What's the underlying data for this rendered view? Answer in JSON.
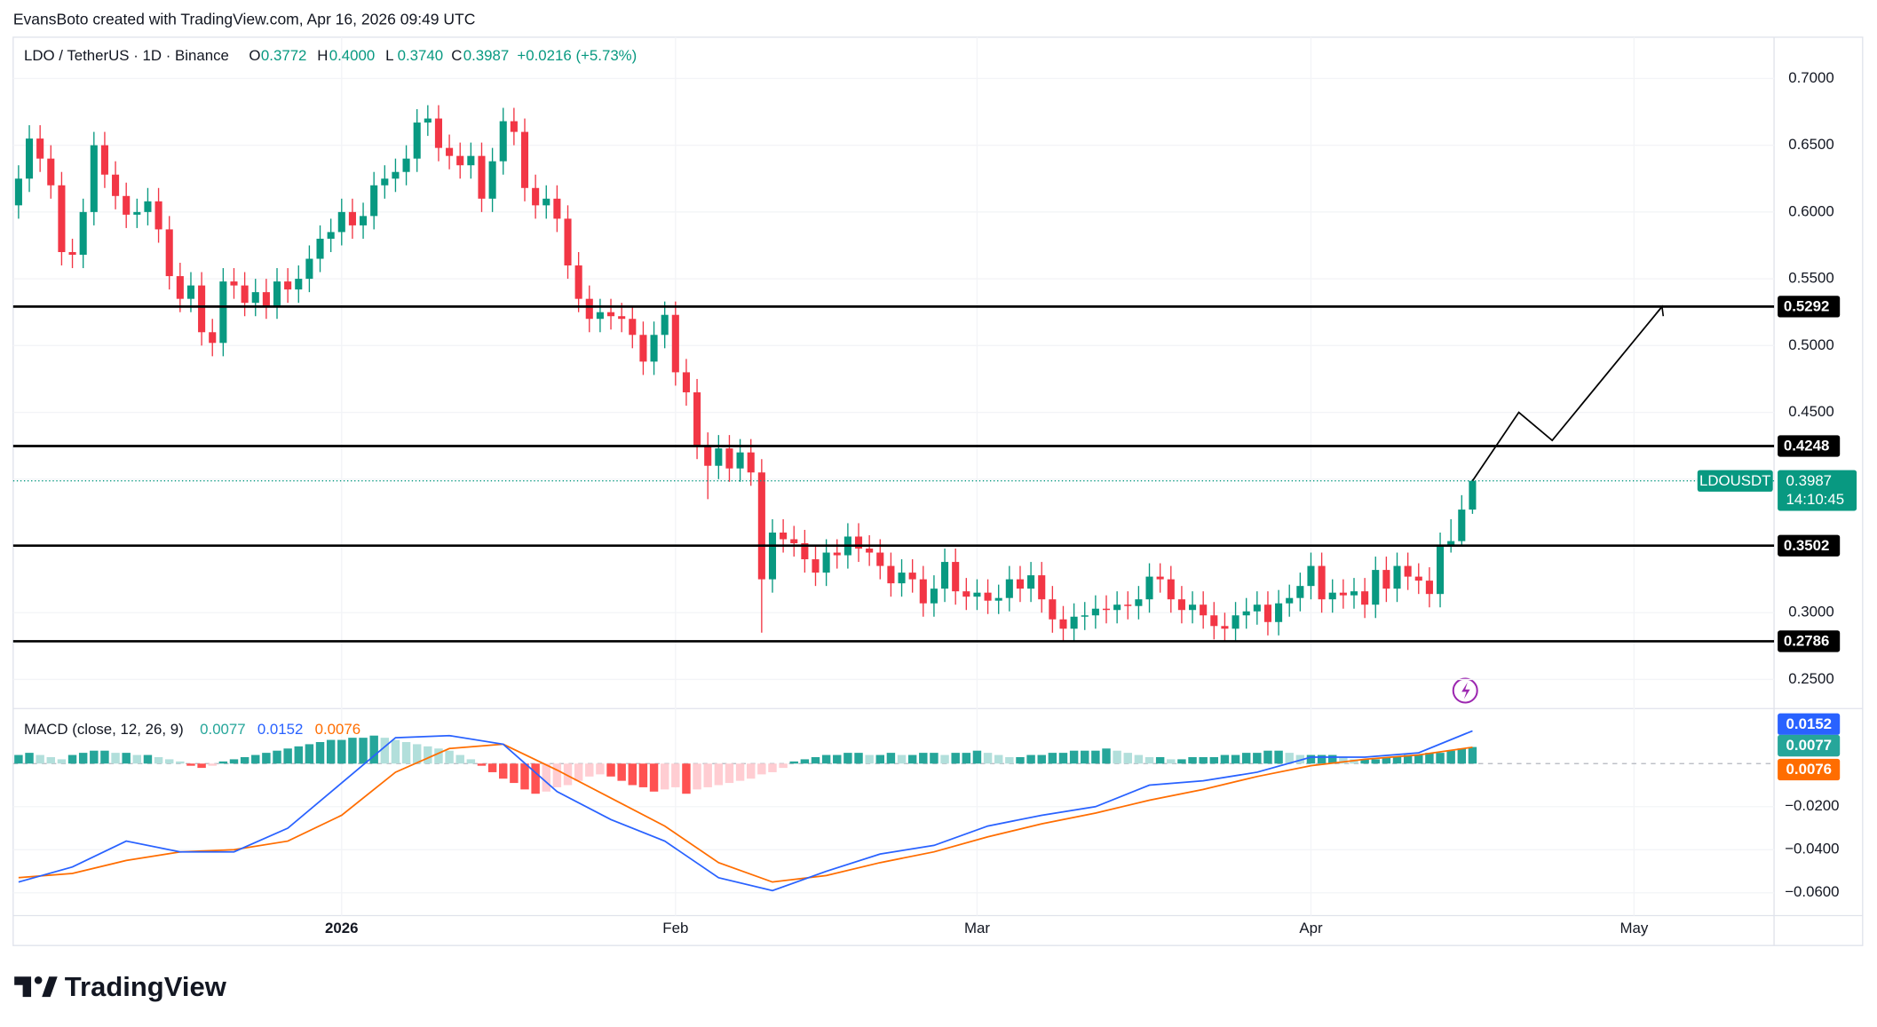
{
  "attribution": "EvansBoto created with TradingView.com, Apr 16, 2026 09:49 UTC",
  "logo": "TradingView",
  "chart_data": [
    {
      "type": "candlestick",
      "title": "LDO / TetherUS · 1D · Binance",
      "ohlc": [
        {
          "key": "O",
          "value": "0.3772"
        },
        {
          "key": "H",
          "value": "0.4000"
        },
        {
          "key": "L",
          "value": "0.3740"
        },
        {
          "key": "C",
          "value": "0.3987"
        }
      ],
      "change": "+0.0216 (+5.73%)",
      "up_color": "#089981",
      "down_color": "#f23645",
      "open": [
        0.605,
        0.625,
        0.655,
        0.64,
        0.62,
        0.57,
        0.568,
        0.6,
        0.65,
        0.628,
        0.612,
        0.598,
        0.6,
        0.608,
        0.587,
        0.552,
        0.535,
        0.545,
        0.51,
        0.502,
        0.548,
        0.545,
        0.532,
        0.54,
        0.53,
        0.548,
        0.542,
        0.55,
        0.565,
        0.58,
        0.585,
        0.6,
        0.59,
        0.597,
        0.62,
        0.625,
        0.63,
        0.64,
        0.667,
        0.67,
        0.648,
        0.642,
        0.635,
        0.642,
        0.61,
        0.638,
        0.668,
        0.66,
        0.618,
        0.605,
        0.61,
        0.595,
        0.56,
        0.535,
        0.52,
        0.525,
        0.522,
        0.52,
        0.508,
        0.488,
        0.508,
        0.523,
        0.48,
        0.465,
        0.425,
        0.41,
        0.423,
        0.408,
        0.42,
        0.405,
        0.325,
        0.36,
        0.355,
        0.352,
        0.34,
        0.33,
        0.345,
        0.343,
        0.357,
        0.348,
        0.345,
        0.335,
        0.322,
        0.33,
        0.325,
        0.307,
        0.318,
        0.338,
        0.316,
        0.312,
        0.315,
        0.309,
        0.311,
        0.325,
        0.318,
        0.328,
        0.31,
        0.295,
        0.288,
        0.297,
        0.298,
        0.303,
        0.302,
        0.306,
        0.305,
        0.31,
        0.327,
        0.325,
        0.31,
        0.302,
        0.306,
        0.298,
        0.29,
        0.288,
        0.298,
        0.301,
        0.306,
        0.293,
        0.307,
        0.311,
        0.32,
        0.335,
        0.31,
        0.315,
        0.313,
        0.316,
        0.306,
        0.332,
        0.318,
        0.335,
        0.327,
        0.324,
        0.314,
        0.35,
        0.3536,
        0.3772
      ],
      "high": [
        0.635,
        0.665,
        0.665,
        0.65,
        0.63,
        0.58,
        0.61,
        0.66,
        0.66,
        0.638,
        0.622,
        0.61,
        0.618,
        0.618,
        0.597,
        0.562,
        0.555,
        0.555,
        0.52,
        0.558,
        0.558,
        0.555,
        0.55,
        0.55,
        0.558,
        0.558,
        0.56,
        0.575,
        0.59,
        0.595,
        0.61,
        0.61,
        0.607,
        0.63,
        0.635,
        0.64,
        0.65,
        0.677,
        0.68,
        0.68,
        0.658,
        0.652,
        0.652,
        0.652,
        0.648,
        0.678,
        0.678,
        0.67,
        0.628,
        0.62,
        0.62,
        0.605,
        0.57,
        0.545,
        0.535,
        0.535,
        0.532,
        0.53,
        0.518,
        0.518,
        0.533,
        0.533,
        0.49,
        0.475,
        0.435,
        0.433,
        0.433,
        0.43,
        0.43,
        0.415,
        0.37,
        0.37,
        0.365,
        0.362,
        0.35,
        0.355,
        0.355,
        0.367,
        0.367,
        0.358,
        0.355,
        0.345,
        0.34,
        0.34,
        0.335,
        0.328,
        0.348,
        0.348,
        0.326,
        0.325,
        0.325,
        0.321,
        0.335,
        0.335,
        0.338,
        0.338,
        0.32,
        0.305,
        0.307,
        0.308,
        0.313,
        0.313,
        0.316,
        0.316,
        0.32,
        0.337,
        0.337,
        0.335,
        0.32,
        0.316,
        0.316,
        0.308,
        0.3,
        0.308,
        0.311,
        0.316,
        0.316,
        0.317,
        0.321,
        0.33,
        0.345,
        0.345,
        0.325,
        0.325,
        0.326,
        0.326,
        0.342,
        0.342,
        0.345,
        0.345,
        0.337,
        0.334,
        0.36,
        0.37,
        0.388,
        0.4
      ],
      "low": [
        0.595,
        0.615,
        0.63,
        0.61,
        0.56,
        0.558,
        0.558,
        0.59,
        0.618,
        0.602,
        0.588,
        0.588,
        0.59,
        0.577,
        0.542,
        0.525,
        0.525,
        0.5,
        0.492,
        0.492,
        0.535,
        0.522,
        0.522,
        0.52,
        0.52,
        0.532,
        0.532,
        0.54,
        0.555,
        0.57,
        0.575,
        0.58,
        0.58,
        0.587,
        0.61,
        0.615,
        0.62,
        0.63,
        0.657,
        0.638,
        0.632,
        0.625,
        0.625,
        0.6,
        0.6,
        0.628,
        0.65,
        0.608,
        0.595,
        0.595,
        0.585,
        0.55,
        0.525,
        0.51,
        0.51,
        0.512,
        0.51,
        0.498,
        0.478,
        0.478,
        0.498,
        0.47,
        0.455,
        0.415,
        0.385,
        0.4,
        0.398,
        0.398,
        0.395,
        0.285,
        0.315,
        0.345,
        0.342,
        0.33,
        0.32,
        0.32,
        0.333,
        0.333,
        0.338,
        0.335,
        0.325,
        0.312,
        0.312,
        0.315,
        0.297,
        0.297,
        0.308,
        0.306,
        0.302,
        0.302,
        0.299,
        0.299,
        0.301,
        0.308,
        0.308,
        0.3,
        0.285,
        0.278,
        0.278,
        0.287,
        0.288,
        0.292,
        0.292,
        0.295,
        0.295,
        0.3,
        0.315,
        0.3,
        0.292,
        0.292,
        0.288,
        0.28,
        0.278,
        0.278,
        0.288,
        0.291,
        0.283,
        0.283,
        0.297,
        0.301,
        0.31,
        0.3,
        0.3,
        0.303,
        0.303,
        0.296,
        0.296,
        0.308,
        0.308,
        0.317,
        0.314,
        0.304,
        0.304,
        0.345,
        0.35,
        0.374
      ],
      "close": [
        0.625,
        0.655,
        0.64,
        0.62,
        0.57,
        0.568,
        0.6,
        0.65,
        0.628,
        0.612,
        0.598,
        0.6,
        0.608,
        0.587,
        0.552,
        0.535,
        0.545,
        0.51,
        0.502,
        0.548,
        0.545,
        0.532,
        0.54,
        0.53,
        0.548,
        0.542,
        0.55,
        0.565,
        0.58,
        0.585,
        0.6,
        0.59,
        0.597,
        0.62,
        0.625,
        0.63,
        0.64,
        0.667,
        0.67,
        0.648,
        0.642,
        0.635,
        0.642,
        0.61,
        0.638,
        0.668,
        0.66,
        0.618,
        0.605,
        0.61,
        0.595,
        0.56,
        0.535,
        0.52,
        0.525,
        0.522,
        0.52,
        0.508,
        0.488,
        0.508,
        0.523,
        0.48,
        0.465,
        0.425,
        0.41,
        0.423,
        0.408,
        0.42,
        0.405,
        0.325,
        0.36,
        0.355,
        0.352,
        0.34,
        0.33,
        0.345,
        0.343,
        0.357,
        0.348,
        0.345,
        0.335,
        0.322,
        0.33,
        0.325,
        0.307,
        0.318,
        0.338,
        0.316,
        0.312,
        0.315,
        0.309,
        0.311,
        0.325,
        0.318,
        0.328,
        0.31,
        0.295,
        0.288,
        0.297,
        0.298,
        0.303,
        0.302,
        0.306,
        0.305,
        0.31,
        0.327,
        0.325,
        0.31,
        0.302,
        0.306,
        0.298,
        0.29,
        0.288,
        0.298,
        0.301,
        0.306,
        0.293,
        0.307,
        0.311,
        0.32,
        0.335,
        0.31,
        0.315,
        0.313,
        0.316,
        0.306,
        0.332,
        0.318,
        0.335,
        0.327,
        0.324,
        0.314,
        0.35,
        0.3536,
        0.3772,
        0.3987
      ],
      "xlim": [
        -0.5,
        163
      ],
      "xticks": [
        {
          "value": 30,
          "label": "2026"
        },
        {
          "value": 61,
          "label": "Feb"
        },
        {
          "value": 89,
          "label": "Mar"
        },
        {
          "value": 120,
          "label": "Apr"
        },
        {
          "value": 150,
          "label": "May"
        }
      ],
      "ylim": [
        0.23,
        0.73
      ],
      "yticks": [
        {
          "value": 0.25,
          "label": "0.2500"
        },
        {
          "value": 0.3,
          "label": "0.3000"
        },
        {
          "value": 0.35,
          "label": "0.3500"
        },
        {
          "value": 0.4,
          "label": "0.4000"
        },
        {
          "value": 0.45,
          "label": "0.4500"
        },
        {
          "value": 0.5,
          "label": "0.5000"
        },
        {
          "value": 0.55,
          "label": "0.5500"
        },
        {
          "value": 0.6,
          "label": "0.6000"
        },
        {
          "value": 0.65,
          "label": "0.6500"
        },
        {
          "value": 0.7,
          "label": "0.7000"
        }
      ],
      "grid": true,
      "levels": [
        0.5292,
        0.4248,
        0.3502,
        0.2786
      ],
      "level_color": "#000000",
      "projection": {
        "x": [
          135,
          139.3,
          142.4,
          152.6
        ],
        "y": [
          0.3987,
          0.45,
          0.429,
          0.5292
        ],
        "color": "#000000"
      },
      "last_price": {
        "name": "LDOUSDT",
        "value": 0.3987,
        "countdown": "14:10:45",
        "color": "#089981"
      }
    },
    {
      "type": "macd",
      "title": "MACD (close, 12, 26, 9)",
      "ylim": [
        -0.0706,
        0.025
      ],
      "yticks": [
        {
          "value": -0.02,
          "label": "−0.0200"
        },
        {
          "value": -0.04,
          "label": "−0.0400"
        },
        {
          "value": -0.06,
          "label": "−0.0600"
        }
      ],
      "histogram": {
        "colors": [
          "#26a69a",
          "#b2dfdb",
          "#ff5252",
          "#ffcdd2"
        ],
        "values": [
          0.004,
          0.005,
          0.004,
          0.003,
          0.002,
          0.004,
          0.005,
          0.006,
          0.006,
          0.005,
          0.005,
          0.004,
          0.004,
          0.003,
          0.002,
          0.001,
          -0.001,
          -0.002,
          -0.001,
          0.001,
          0.002,
          0.003,
          0.004,
          0.005,
          0.006,
          0.007,
          0.008,
          0.009,
          0.01,
          0.011,
          0.011,
          0.012,
          0.012,
          0.013,
          0.012,
          0.011,
          0.01,
          0.009,
          0.008,
          0.007,
          0.006,
          0.004,
          0.002,
          -0.001,
          -0.004,
          -0.007,
          -0.009,
          -0.012,
          -0.014,
          -0.013,
          -0.011,
          -0.01,
          -0.008,
          -0.006,
          -0.005,
          -0.006,
          -0.008,
          -0.01,
          -0.011,
          -0.013,
          -0.012,
          -0.011,
          -0.014,
          -0.012,
          -0.011,
          -0.01,
          -0.009,
          -0.008,
          -0.007,
          -0.005,
          -0.004,
          -0.002,
          0.001,
          0.002,
          0.003,
          0.004,
          0.004,
          0.005,
          0.005,
          0.004,
          0.004,
          0.005,
          0.004,
          0.004,
          0.005,
          0.005,
          0.004,
          0.005,
          0.005,
          0.006,
          0.005,
          0.004,
          0.003,
          0.003,
          0.004,
          0.004,
          0.005,
          0.005,
          0.006,
          0.006,
          0.006,
          0.007,
          0.006,
          0.005,
          0.004,
          0.003,
          0.003,
          0.002,
          0.002,
          0.003,
          0.003,
          0.003,
          0.004,
          0.004,
          0.005,
          0.005,
          0.006,
          0.006,
          0.005,
          0.004,
          0.004,
          0.004,
          0.004,
          0.003,
          0.002,
          0.002,
          0.002,
          0.003,
          0.003,
          0.004,
          0.004,
          0.005,
          0.005,
          0.006,
          0.007,
          0.0077
        ]
      },
      "macd": {
        "color": "#2962ff",
        "x": [
          0,
          5,
          10,
          15,
          20,
          25,
          30,
          35,
          40,
          45,
          50,
          55,
          60,
          65,
          70,
          75,
          80,
          85,
          90,
          95,
          100,
          105,
          110,
          115,
          120,
          125,
          130,
          135
        ],
        "values": [
          -0.055,
          -0.048,
          -0.036,
          -0.041,
          -0.041,
          -0.03,
          -0.009,
          0.012,
          0.013,
          0.009,
          -0.013,
          -0.026,
          -0.036,
          -0.053,
          -0.059,
          -0.05,
          -0.042,
          -0.038,
          -0.029,
          -0.024,
          -0.02,
          -0.01,
          -0.008,
          -0.004,
          0.003,
          0.003,
          0.005,
          0.0152
        ]
      },
      "signal": {
        "color": "#ff6d00",
        "x": [
          0,
          5,
          10,
          15,
          20,
          25,
          30,
          35,
          40,
          45,
          50,
          55,
          60,
          65,
          70,
          75,
          80,
          85,
          90,
          95,
          100,
          105,
          110,
          115,
          120,
          125,
          130,
          135
        ],
        "values": [
          -0.053,
          -0.051,
          -0.045,
          -0.041,
          -0.04,
          -0.036,
          -0.024,
          -0.004,
          0.007,
          0.009,
          -0.003,
          -0.016,
          -0.029,
          -0.046,
          -0.055,
          -0.052,
          -0.046,
          -0.041,
          -0.034,
          -0.028,
          -0.023,
          -0.017,
          -0.012,
          -0.006,
          -0.001,
          0.002,
          0.004,
          0.0076
        ]
      }
    }
  ]
}
